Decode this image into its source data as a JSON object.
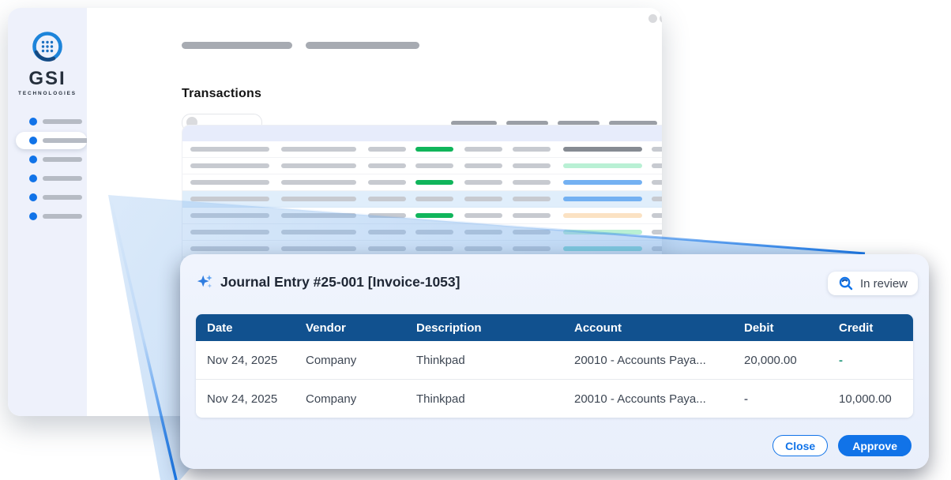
{
  "colors": {
    "accent": "#1173e8",
    "table_header_blue": "#11518f",
    "skeleton_green": "#10b55b",
    "beam_blue": "#7db2ec",
    "positive_dash": "#2f9e83",
    "muted_dash": "#6b7280",
    "sidebar_bg": "#eef1fb",
    "selected_row_bg": "#e0eefb"
  },
  "window": {
    "brand": {
      "name": "GSI",
      "subtitle": "TECHNOLOGIES",
      "logo_icon": "gsi-ring-dots-logo"
    },
    "page_title": "Transactions",
    "chrome_icons": [
      "window-circle",
      "window-circle",
      "window-circle",
      "address-bar"
    ],
    "sidebar_items": [
      {
        "active": false
      },
      {
        "active": true
      },
      {
        "active": false
      },
      {
        "active": false
      },
      {
        "active": false
      },
      {
        "active": false
      }
    ]
  },
  "skeleton": {
    "rows": [
      {
        "selected": false,
        "col4": "#10b55b",
        "col7": "#868b93"
      },
      {
        "selected": false,
        "col4": "#c7cad0",
        "col7": "#b9f0d4"
      },
      {
        "selected": false,
        "col4": "#10b55b",
        "col7": "#74b1f2"
      },
      {
        "selected": true,
        "col4": "#c7cad0",
        "col7": "#74b1f2"
      },
      {
        "selected": false,
        "col4": "#10b55b",
        "col7": "#fbe2c3"
      },
      {
        "selected": false,
        "col4": "#c7cad0",
        "col7": "#b9f0d4"
      },
      {
        "selected": false,
        "col4": "#c7cad0",
        "col7": "#7edcd4"
      },
      {
        "selected": false,
        "col4": "#c7cad0",
        "col7": "#c7cad0"
      },
      {
        "selected": false,
        "col4": "#c7cad0",
        "col7": "#c7cad0"
      },
      {
        "selected": false,
        "col4": "#c7cad0",
        "col7": "#c7cad0"
      },
      {
        "selected": false,
        "col4": "#c7cad0",
        "col7": "#c7cad0"
      },
      {
        "selected": false,
        "col4": "#c7cad0",
        "col7": "#c7cad0"
      },
      {
        "selected": false,
        "col4": "#c7cad0",
        "col7": "#c7cad0"
      },
      {
        "selected": false,
        "col4": "#c7cad0",
        "col7": "#c7cad0"
      },
      {
        "selected": false,
        "col4": "#c7cad0",
        "col7": "#c7cad0"
      }
    ]
  },
  "modal": {
    "title": "Journal Entry #25-001 [Invoice-1053]",
    "title_icon": "sparkle-icon",
    "status_badge": {
      "label": "In review",
      "icon": "magnifier-icon"
    },
    "table": {
      "columns": [
        "Date",
        "Vendor",
        "Description",
        "Account",
        "Debit",
        "Credit"
      ],
      "rows": [
        [
          {
            "t": "Nov 24, 2025"
          },
          {
            "t": "Company"
          },
          {
            "t": "Thinkpad"
          },
          {
            "t": "20010 - Accounts Paya..."
          },
          {
            "t": "20,000.00"
          },
          {
            "t": "-",
            "c": "#2f9e83"
          }
        ],
        [
          {
            "t": "Nov 24, 2025"
          },
          {
            "t": "Company"
          },
          {
            "t": "Thinkpad"
          },
          {
            "t": "20010 - Accounts Paya..."
          },
          {
            "t": "-",
            "c": "#6b7280"
          },
          {
            "t": "10,000.00"
          }
        ]
      ]
    },
    "buttons": {
      "close": "Close",
      "approve": "Approve"
    }
  }
}
